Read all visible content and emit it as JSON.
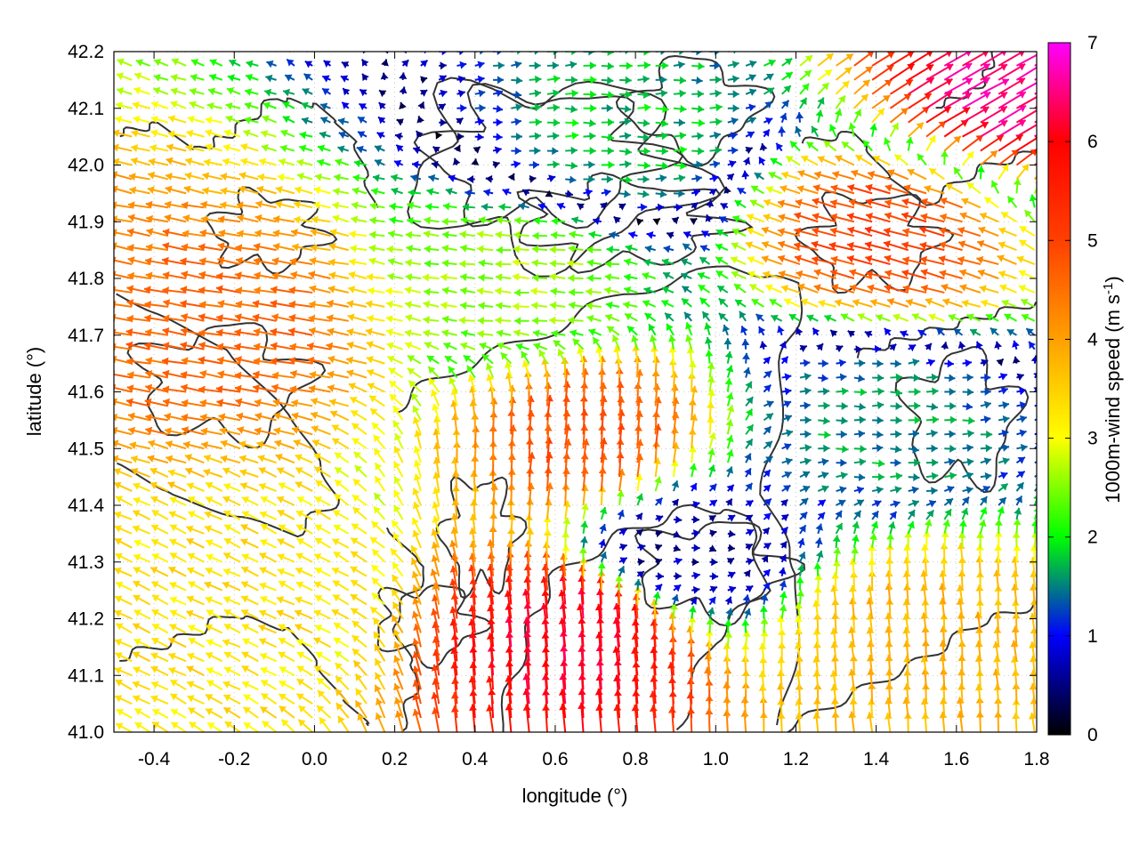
{
  "chart_data": {
    "type": "vector-field",
    "xlabel": "longitude (°)",
    "ylabel": "latitude (°)",
    "colorbar_label": "1000m-wind speed (m s",
    "colorbar_label_sup": "-1",
    "colorbar_label_end": ")",
    "xlim": [
      -0.5,
      1.8
    ],
    "ylim": [
      41.0,
      42.2
    ],
    "xticks": [
      -0.4,
      -0.2,
      0.0,
      0.2,
      0.4,
      0.6,
      0.8,
      1.0,
      1.2,
      1.4,
      1.6,
      1.8
    ],
    "xtick_labels": [
      "-0.4",
      "-0.2",
      "0.0",
      "0.2",
      "0.4",
      "0.6",
      "0.8",
      "1.0",
      "1.2",
      "1.4",
      "1.6",
      "1.8"
    ],
    "yticks": [
      41.0,
      41.1,
      41.2,
      41.3,
      41.4,
      41.5,
      41.6,
      41.7,
      41.8,
      41.9,
      42.0,
      42.1,
      42.2
    ],
    "ytick_labels": [
      "41.0",
      "41.1",
      "41.2",
      "41.3",
      "41.4",
      "41.5",
      "41.6",
      "41.7",
      "41.8",
      "41.9",
      "42.0",
      "42.1",
      "42.2"
    ],
    "colorbar": {
      "range": [
        0,
        7
      ],
      "ticks": [
        0,
        1,
        2,
        3,
        4,
        5,
        6,
        7
      ],
      "tick_labels": [
        "0",
        "1",
        "2",
        "3",
        "4",
        "5",
        "6",
        "7"
      ],
      "colormap": [
        "#000000",
        "#0000ff",
        "#00ff00",
        "#ffff00",
        "#ffa000",
        "#ff4000",
        "#ff0000",
        "#ff00ff"
      ]
    },
    "grid": "dotted",
    "contour_color": "#333333",
    "wind_regions": [
      {
        "lon": [
          -0.5,
          0.1
        ],
        "lat": [
          41.5,
          41.9
        ],
        "dir_deg": 170,
        "speed": 4.6
      },
      {
        "lon": [
          -0.5,
          0.2
        ],
        "lat": [
          41.0,
          41.5
        ],
        "dir_deg": 155,
        "speed": 3.3
      },
      {
        "lon": [
          0.2,
          0.9
        ],
        "lat": [
          41.7,
          41.9
        ],
        "dir_deg": 175,
        "speed": 2.6
      },
      {
        "lon": [
          0.3,
          1.2
        ],
        "lat": [
          41.9,
          42.2
        ],
        "dir_deg": 0,
        "speed": 1.8
      },
      {
        "lon": [
          0.5,
          0.8
        ],
        "lat": [
          41.0,
          41.3
        ],
        "dir_deg": 95,
        "speed": 6.2
      },
      {
        "lon": [
          0.5,
          0.9
        ],
        "lat": [
          41.4,
          41.6
        ],
        "dir_deg": 85,
        "speed": 4.9
      },
      {
        "lon": [
          1.1,
          1.8
        ],
        "lat": [
          41.7,
          42.05
        ],
        "dir_deg": 165,
        "speed": 5.0
      },
      {
        "lon": [
          1.2,
          1.8
        ],
        "lat": [
          41.0,
          41.3
        ],
        "dir_deg": 95,
        "speed": 3.8
      },
      {
        "lon": [
          1.2,
          1.6
        ],
        "lat": [
          41.45,
          41.65
        ],
        "dir_deg": 0,
        "speed": 1.6
      },
      {
        "lon": [
          0.8,
          1.0
        ],
        "lat": [
          41.25,
          41.4
        ],
        "dir_deg": 0,
        "speed": 0.6
      },
      {
        "lon": [
          1.6,
          1.8
        ],
        "lat": [
          42.05,
          42.2
        ],
        "dir_deg": 30,
        "speed": 6.6
      }
    ]
  }
}
